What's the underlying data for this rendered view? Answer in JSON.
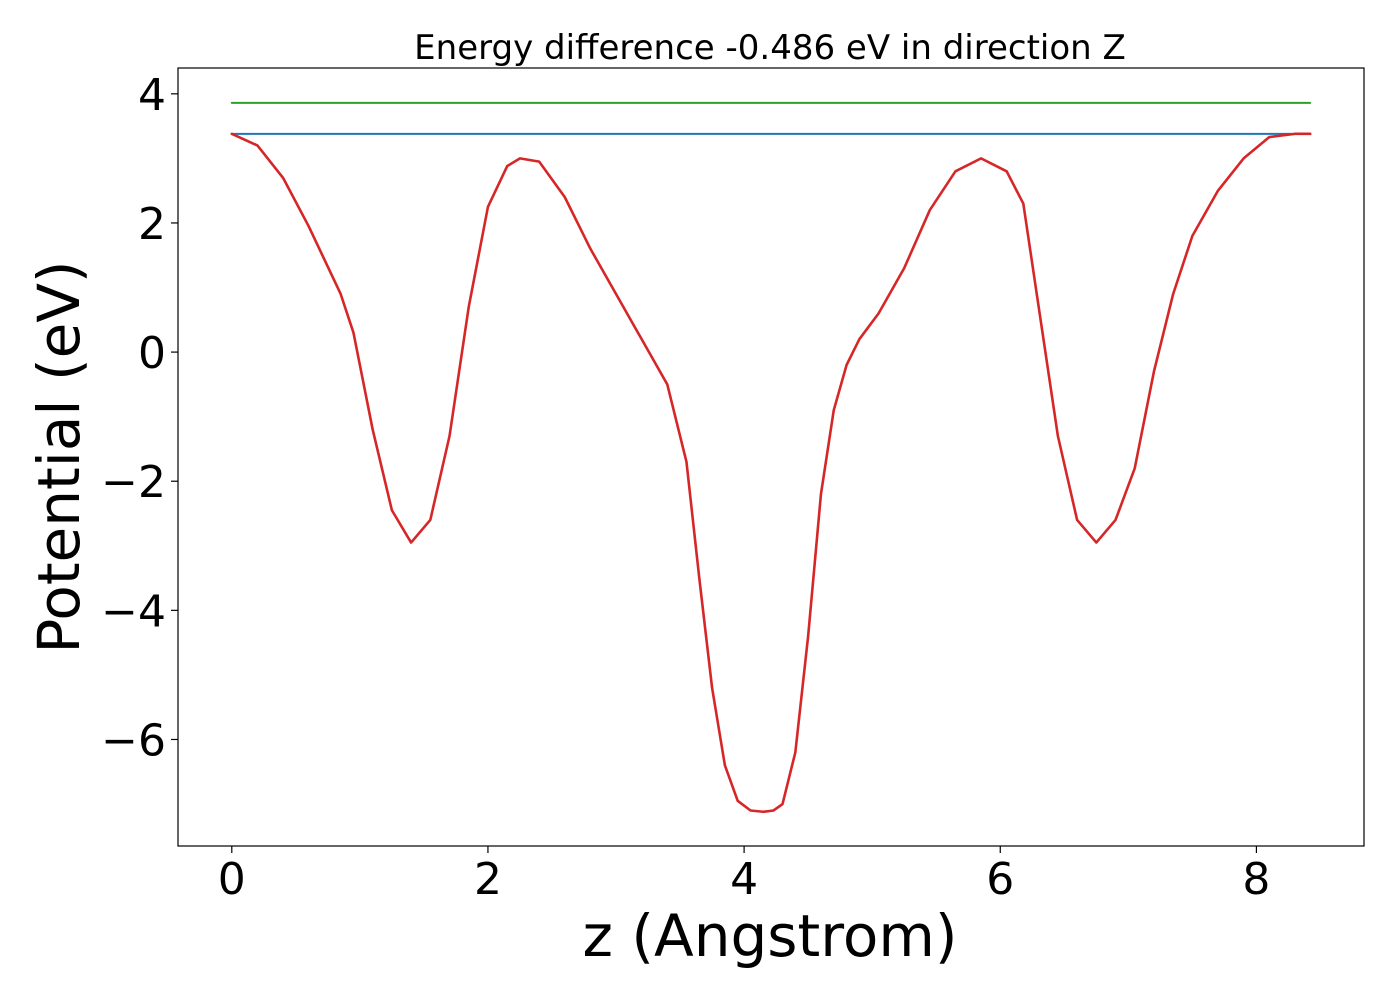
{
  "chart_data": {
    "type": "line",
    "title": "Energy difference -0.486 eV in direction Z",
    "xlabel": "z (Angstrom)",
    "ylabel": "Potential (eV)",
    "xlim": [
      -0.42,
      8.84
    ],
    "ylim": [
      -7.65,
      4.4
    ],
    "grid": false,
    "x_ticks": [
      {
        "value": 0,
        "label": "0"
      },
      {
        "value": 2,
        "label": "2"
      },
      {
        "value": 4,
        "label": "4"
      },
      {
        "value": 6,
        "label": "6"
      },
      {
        "value": 8,
        "label": "8"
      }
    ],
    "y_ticks": [
      {
        "value": 4,
        "label": "4"
      },
      {
        "value": 2,
        "label": "2"
      },
      {
        "value": 0,
        "label": "0"
      },
      {
        "value": -2,
        "label": "−2"
      },
      {
        "value": -4,
        "label": "−4"
      },
      {
        "value": -6,
        "label": "−6"
      }
    ],
    "series": [
      {
        "color": "#d62728",
        "x": [
          0.0,
          0.2,
          0.4,
          0.6,
          0.85,
          0.95,
          1.1,
          1.25,
          1.4,
          1.55,
          1.7,
          1.85,
          2.0,
          2.15,
          2.25,
          2.4,
          2.6,
          2.8,
          3.0,
          3.2,
          3.4,
          3.55,
          3.65,
          3.75,
          3.85,
          3.95,
          4.05,
          4.15,
          4.23,
          4.3,
          4.4,
          4.5,
          4.6,
          4.7,
          4.8,
          4.9,
          5.05,
          5.25,
          5.45,
          5.65,
          5.85,
          6.05,
          6.18,
          6.3,
          6.45,
          6.6,
          6.75,
          6.9,
          7.05,
          7.2,
          7.35,
          7.5,
          7.7,
          7.9,
          8.1,
          8.3,
          8.42
        ],
        "y": [
          3.38,
          3.2,
          2.7,
          1.95,
          0.9,
          0.3,
          -1.2,
          -2.45,
          -2.95,
          -2.6,
          -1.3,
          0.7,
          2.25,
          2.88,
          3.0,
          2.95,
          2.4,
          1.6,
          0.9,
          0.2,
          -0.5,
          -1.7,
          -3.5,
          -5.2,
          -6.4,
          -6.95,
          -7.1,
          -7.12,
          -7.1,
          -7.0,
          -6.2,
          -4.4,
          -2.2,
          -0.9,
          -0.2,
          0.2,
          0.6,
          1.3,
          2.2,
          2.8,
          3.0,
          2.8,
          2.3,
          0.7,
          -1.3,
          -2.6,
          -2.95,
          -2.6,
          -1.8,
          -0.3,
          0.9,
          1.8,
          2.5,
          3.0,
          3.33,
          3.38,
          3.38
        ]
      },
      {
        "color": "#1f77b4",
        "x": [
          0.0,
          8.42
        ],
        "y": [
          3.38,
          3.38
        ]
      },
      {
        "color": "#2ca02c",
        "x": [
          0.0,
          8.42
        ],
        "y": [
          3.86,
          3.86
        ]
      }
    ]
  }
}
